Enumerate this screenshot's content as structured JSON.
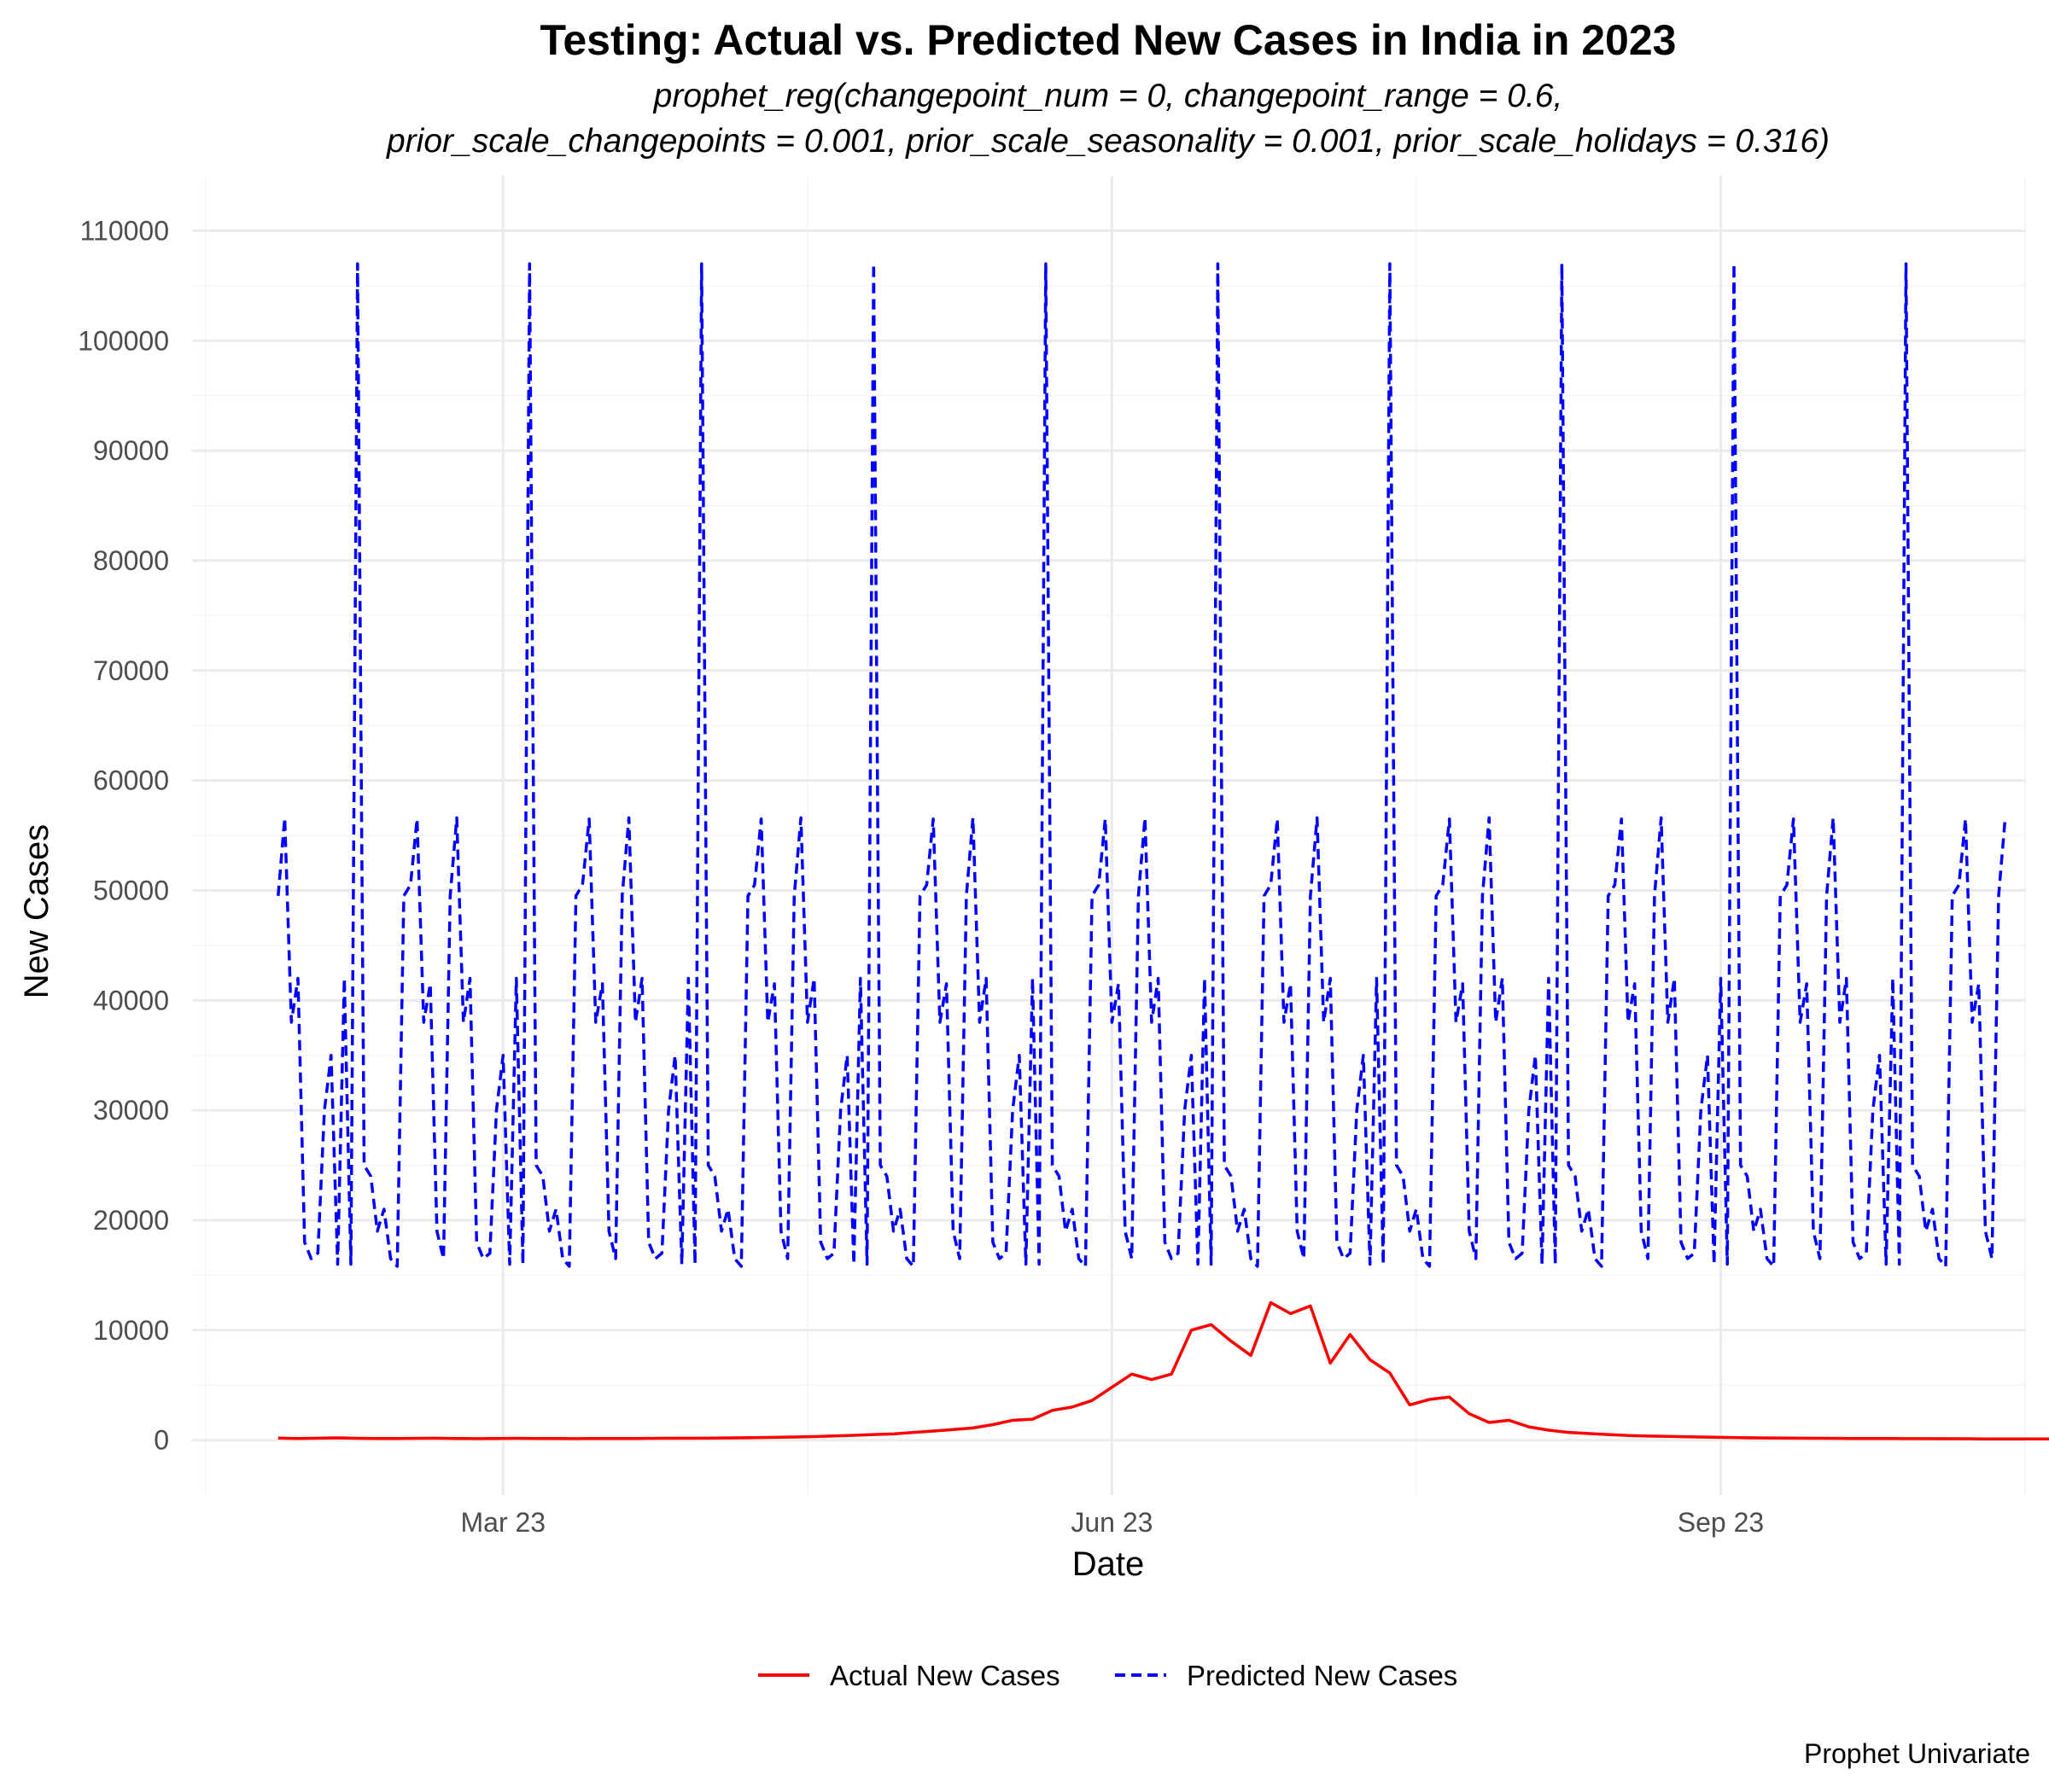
{
  "chart_data": {
    "type": "line",
    "title": "Testing: Actual vs. Predicted New Cases in India in 2023",
    "subtitle_line1": "prophet_reg(changepoint_num = 0, changepoint_range = 0.6,",
    "subtitle_line2": "prior_scale_changepoints = 0.001, prior_scale_seasonality = 0.001, prior_scale_holidays = 0.316)",
    "xlabel": "Date",
    "ylabel": "New Cases",
    "caption": "Prophet Univariate",
    "x_range": [
      "2023-01-13",
      "2023-10-17"
    ],
    "ylim": [
      -5000,
      115000
    ],
    "x_ticks": [
      {
        "date": "2023-03-01",
        "label": "Mar 23"
      },
      {
        "date": "2023-06-01",
        "label": "Jun 23"
      },
      {
        "date": "2023-09-01",
        "label": "Sep 23"
      }
    ],
    "y_ticks": [
      0,
      10000,
      20000,
      30000,
      40000,
      50000,
      60000,
      70000,
      80000,
      90000,
      100000,
      110000
    ],
    "grid": true,
    "legend_position": "bottom",
    "series": [
      {
        "name": "Actual New Cases",
        "color": "#ff0000",
        "style": "solid",
        "start_date": "2023-01-26",
        "step_days": 3,
        "values": [
          180,
          150,
          170,
          200,
          160,
          150,
          140,
          160,
          170,
          150,
          130,
          140,
          160,
          150,
          140,
          130,
          140,
          150,
          140,
          160,
          170,
          170,
          180,
          200,
          220,
          250,
          280,
          320,
          380,
          430,
          500,
          560,
          700,
          820,
          950,
          1100,
          1400,
          1800,
          1900,
          2700,
          3000,
          3600,
          4800,
          6000,
          5500,
          6000,
          10000,
          10500,
          9000,
          7700,
          12500,
          11500,
          12200,
          7000,
          9600,
          7300,
          6100,
          3200,
          3700,
          3900,
          2400,
          1600,
          1800,
          1200,
          900,
          700,
          600,
          500,
          420,
          360,
          330,
          300,
          270,
          240,
          210,
          190,
          180,
          170,
          160,
          150,
          140,
          140,
          130,
          130,
          120,
          120,
          110,
          110,
          110,
          100,
          100,
          100,
          100,
          90,
          90,
          90,
          80,
          80,
          80
        ]
      },
      {
        "name": "Predicted New Cases",
        "color": "#0000ff",
        "style": "dashed",
        "start_date": "2023-01-26",
        "step_days": 1,
        "pattern_values": [
          49500,
          56600,
          38000,
          42000,
          18000,
          16500,
          17000,
          30000,
          35000,
          16000,
          42000,
          16000,
          107000,
          25000,
          24000,
          19000,
          21000,
          16500,
          15800,
          49500,
          50500,
          56500,
          38000,
          41500,
          19000,
          16500
        ]
      }
    ]
  }
}
